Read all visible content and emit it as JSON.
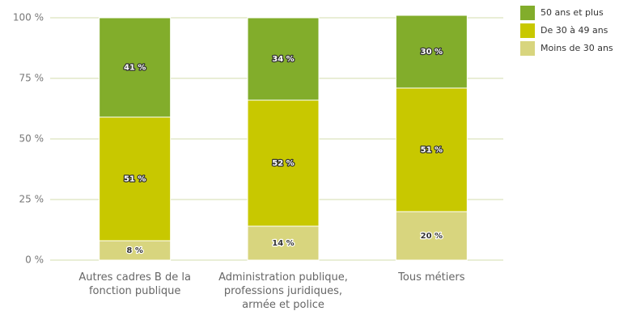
{
  "chart_data": {
    "type": "stacked_bar",
    "categories": [
      "Autres cadres B de la fonction publique",
      "Administration publique, professions juridiques, armée et police",
      "Tous métiers"
    ],
    "series": [
      {
        "name": "Moins de 30 ans",
        "color": "#d8d57e",
        "values": [
          8,
          14,
          20
        ],
        "value_labels": [
          "8 %",
          "14 %",
          "20 %"
        ]
      },
      {
        "name": "De 30 à 49 ans",
        "color": "#c8c800",
        "values": [
          51,
          52,
          51
        ],
        "value_labels": [
          "51 %",
          "52 %",
          "51 %"
        ]
      },
      {
        "name": "50 ans et plus",
        "color": "#82ad2b",
        "values": [
          41,
          34,
          30
        ],
        "value_labels": [
          "41 %",
          "34 %",
          "30 %"
        ]
      }
    ],
    "ylim": [
      0,
      100
    ],
    "yticks": [
      {
        "value": 0,
        "label": "0 %"
      },
      {
        "value": 25,
        "label": "25 %"
      },
      {
        "value": 50,
        "label": "50 %"
      },
      {
        "value": 75,
        "label": "75 %"
      },
      {
        "value": 100,
        "label": "100 %"
      }
    ],
    "grid": true,
    "legend": "top-right"
  }
}
